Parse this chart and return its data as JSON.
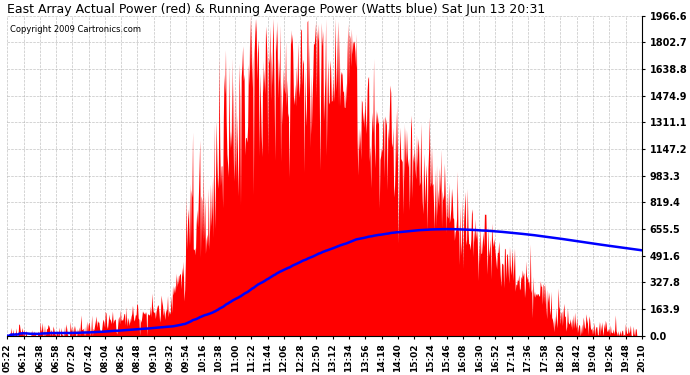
{
  "title": "East Array Actual Power (red) & Running Average Power (Watts blue) Sat Jun 13 20:31",
  "copyright": "Copyright 2009 Cartronics.com",
  "ylabel_right_ticks": [
    0.0,
    163.9,
    327.8,
    491.6,
    655.5,
    819.4,
    983.3,
    1147.2,
    1311.1,
    1474.9,
    1638.8,
    1802.7,
    1966.6
  ],
  "ylim": [
    0.0,
    1966.6
  ],
  "x_labels": [
    "05:22",
    "06:12",
    "06:38",
    "06:58",
    "07:20",
    "07:42",
    "08:04",
    "08:26",
    "08:48",
    "09:10",
    "09:32",
    "09:54",
    "10:16",
    "10:38",
    "11:00",
    "11:22",
    "11:44",
    "12:06",
    "12:28",
    "12:50",
    "13:12",
    "13:34",
    "13:56",
    "14:18",
    "14:40",
    "15:02",
    "15:24",
    "15:46",
    "16:08",
    "16:30",
    "16:52",
    "17:14",
    "17:36",
    "17:58",
    "18:20",
    "18:42",
    "19:04",
    "19:26",
    "19:48",
    "20:10"
  ],
  "background_color": "#ffffff",
  "plot_bg_color": "#ffffff",
  "grid_color": "#aaaaaa",
  "red_color": "#ff0000",
  "blue_color": "#0000ff",
  "title_fontsize": 9,
  "tick_fontsize": 7,
  "copyright_fontsize": 6
}
